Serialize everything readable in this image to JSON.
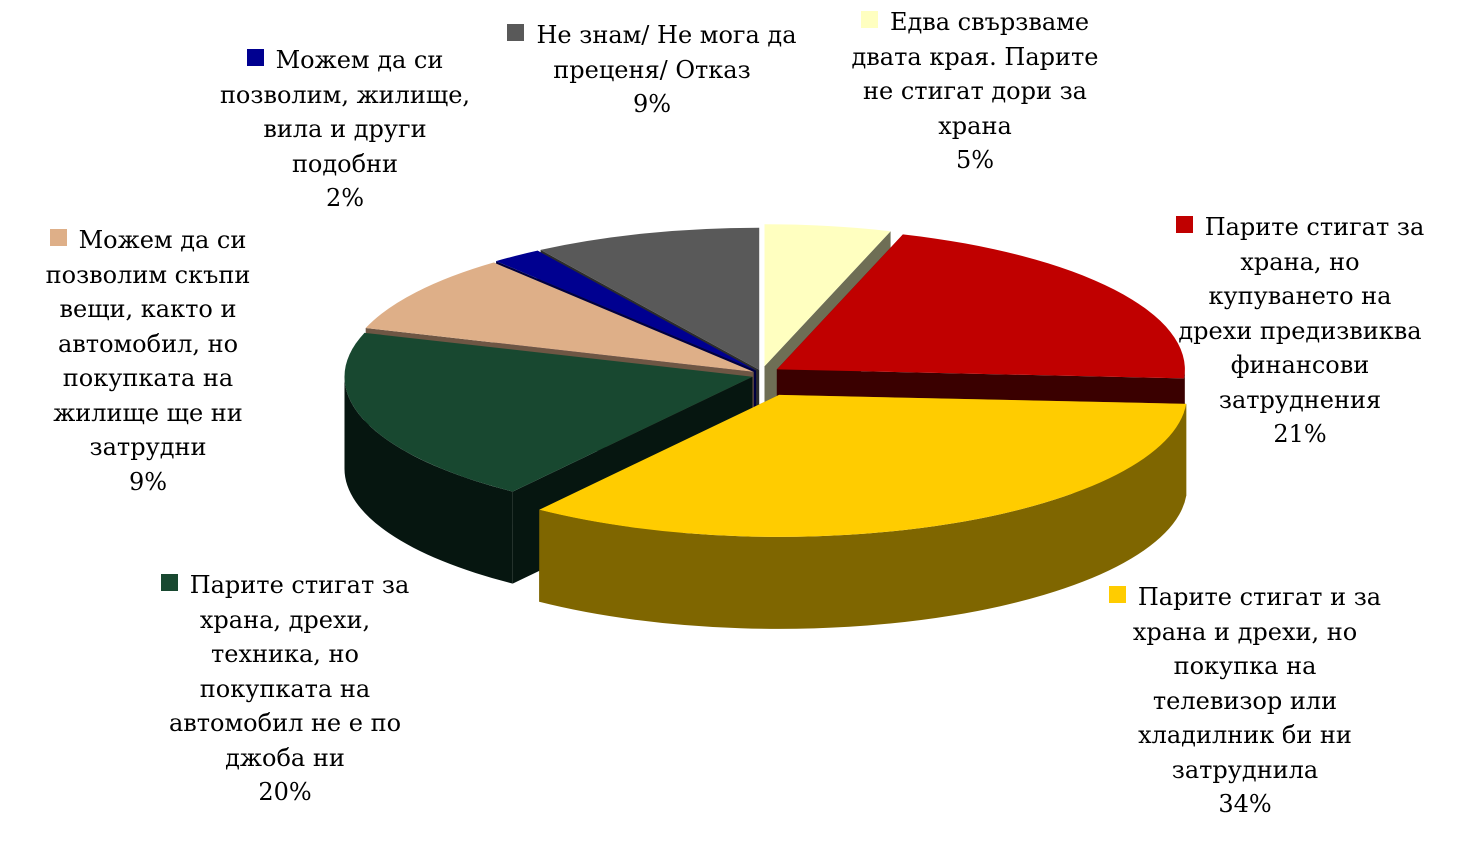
{
  "chart_data": {
    "type": "pie",
    "title": "",
    "series": [
      {
        "name": "",
        "slices": [
          {
            "label": "Едва свързваме\nдвата края. Парите\nне стигат дори за\nхрана",
            "value": 5,
            "value_label": "5%",
            "color": "#FFFFC0",
            "side": "#6E6E55"
          },
          {
            "label": "Парите стигат за\nхрана, но\nкупуването на\nдрехи предизвиква\nфинансови\nзатруднения",
            "value": 21,
            "value_label": "21%",
            "color": "#C00000",
            "side": "#3A0000"
          },
          {
            "label": "Парите стигат и за\nхрана и дрехи, но\nпокупка на\nтелевизор или\nхладилник би ни\nзатруднила",
            "value": 34,
            "value_label": "34%",
            "color": "#FFCC00",
            "side": "#7F6600"
          },
          {
            "label": "Парите стигат за\nхрана, дрехи,\nтехника, но\nпокупката на\nавтомобил не е по\nджоба ни",
            "value": 20,
            "value_label": "20%",
            "color": "#184830",
            "side": "#061610"
          },
          {
            "label": "Можем да си\nпозволим скъпи\nвещи, както и\nавтомобил, но\nпокупката на\nжилище ще ни\nзатрудни",
            "value": 9,
            "value_label": "9%",
            "color": "#DEAF88",
            "side": "#6E5644"
          },
          {
            "label": "Можем да си\nпозволим, жилище,\nвила и други\nподобни",
            "value": 2,
            "value_label": "2%",
            "color": "#000090",
            "side": "#000040"
          },
          {
            "label": "Не знам/ Не мога да\nпреценя/ Отказ",
            "value": 9,
            "value_label": "9%",
            "color": "#595959",
            "side": "#2C2C2C"
          }
        ]
      }
    ],
    "legend": "labels-around-slices",
    "style": "3d-exploded"
  }
}
